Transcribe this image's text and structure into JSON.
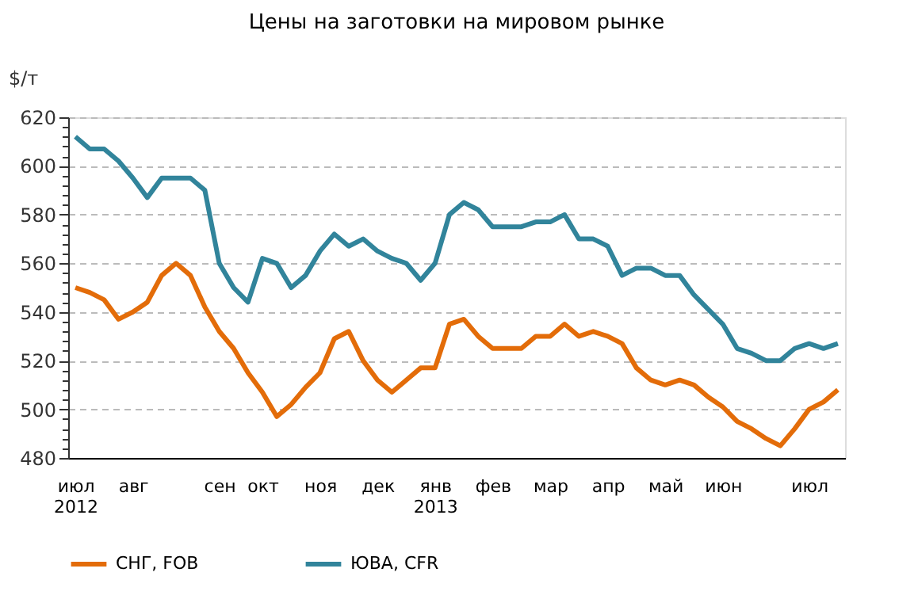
{
  "chart_data": {
    "type": "line",
    "title": "Цены на заготовки на мировом рынке",
    "ylabel": "$/т",
    "categories": [
      "июл\n2012",
      null,
      null,
      null,
      "авг",
      null,
      null,
      null,
      null,
      null,
      "сен",
      null,
      null,
      "окт",
      null,
      null,
      null,
      "ноя",
      null,
      null,
      null,
      "дек",
      null,
      null,
      null,
      "янв\n2013",
      null,
      null,
      null,
      "фев",
      null,
      null,
      null,
      "мар",
      null,
      null,
      null,
      "апр",
      null,
      null,
      null,
      "май",
      null,
      null,
      null,
      "июн",
      null,
      null,
      null,
      null,
      null,
      "июл",
      null,
      null
    ],
    "series": [
      {
        "name": "СНГ, FOB",
        "color": "#e36c09",
        "values": [
          550,
          548,
          545,
          537,
          540,
          544,
          555,
          560,
          555,
          542,
          532,
          525,
          515,
          507,
          497,
          502,
          509,
          515,
          529,
          532,
          520,
          512,
          507,
          512,
          517,
          517,
          535,
          537,
          530,
          525,
          525,
          525,
          530,
          530,
          535,
          530,
          532,
          530,
          527,
          517,
          512,
          510,
          512,
          510,
          505,
          501,
          495,
          492,
          488,
          485,
          492,
          500,
          503,
          508
        ]
      },
      {
        "name": "ЮВА, CFR",
        "color": "#31849b",
        "values": [
          612,
          607,
          607,
          602,
          595,
          587,
          595,
          595,
          595,
          590,
          560,
          550,
          544,
          562,
          560,
          550,
          555,
          565,
          572,
          567,
          570,
          565,
          562,
          560,
          553,
          560,
          580,
          585,
          582,
          575,
          575,
          575,
          577,
          577,
          580,
          570,
          570,
          567,
          555,
          558,
          558,
          555,
          555,
          547,
          541,
          535,
          525,
          523,
          520,
          520,
          525,
          527,
          525,
          527
        ]
      }
    ],
    "ylim": [
      480,
      620
    ],
    "yticks": [
      480,
      {
        "value": 484,
        "label": null
      },
      {
        "value": 488,
        "label": null
      },
      {
        "value": 492,
        "label": null
      },
      {
        "value": 496,
        "label": null
      },
      500,
      {
        "value": 504,
        "label": null
      },
      {
        "value": 508,
        "label": null
      },
      {
        "value": 512,
        "label": null
      },
      {
        "value": 516,
        "label": null
      },
      520,
      {
        "value": 524,
        "label": null
      },
      {
        "value": 528,
        "label": null
      },
      {
        "value": 532,
        "label": null
      },
      {
        "value": 536,
        "label": null
      },
      540,
      {
        "value": 544,
        "label": null
      },
      {
        "value": 548,
        "label": null
      },
      {
        "value": 552,
        "label": null
      },
      {
        "value": 556,
        "label": null
      },
      560,
      {
        "value": 564,
        "label": null
      },
      {
        "value": 568,
        "label": null
      },
      {
        "value": 572,
        "label": null
      },
      {
        "value": 576,
        "label": null
      },
      580,
      {
        "value": 584,
        "label": null
      },
      {
        "value": 588,
        "label": null
      },
      {
        "value": 592,
        "label": null
      },
      {
        "value": 596,
        "label": null
      },
      600,
      {
        "value": 604,
        "label": null
      },
      {
        "value": 608,
        "label": null
      },
      {
        "value": 612,
        "label": null
      },
      {
        "value": 616,
        "label": null
      },
      620
    ],
    "grid": "y",
    "legend": "bottom",
    "marker": "none",
    "line_style": "solid"
  }
}
